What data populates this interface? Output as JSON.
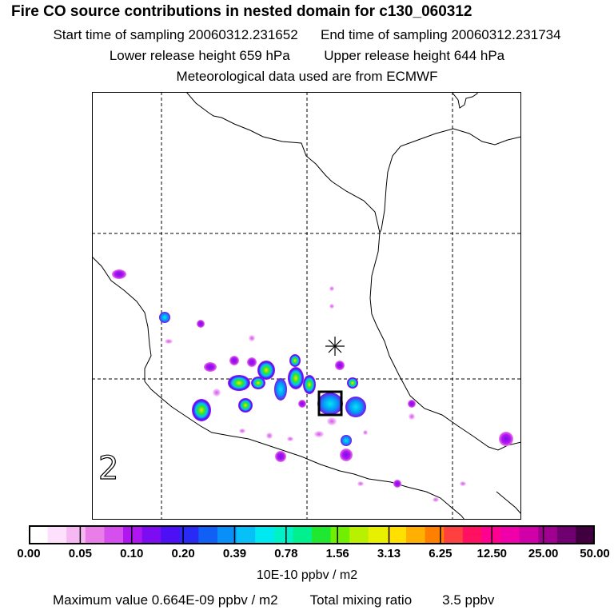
{
  "header": {
    "title": "Fire CO source contributions in nested domain for c130_060312",
    "start_label": "Start time of sampling 20060312.231652",
    "end_label": "End time of sampling 20060312.231734",
    "lower_label": "Lower release height  659 hPa",
    "upper_label": "Upper release height  644 hPa",
    "met_label": "Meteorological data used are from ECMWF"
  },
  "map": {
    "panel_label": "2",
    "marker": "asterisk-release-point",
    "box": "sampling-box"
  },
  "colorbar": {
    "tick_labels": [
      "0.00",
      "0.05",
      "0.10",
      "0.20",
      "0.39",
      "0.78",
      "1.56",
      "3.13",
      "6.25",
      "12.50",
      "25.00",
      "50.00"
    ],
    "units": "10E-10 ppbv / m2",
    "colors": [
      "#ffffff",
      "#fde0fb",
      "#f6b8f2",
      "#ea7ee8",
      "#d44fee",
      "#b016f0",
      "#7d0cf0",
      "#4d10f5",
      "#2a2af5",
      "#1060f5",
      "#0890f8",
      "#08c0f8",
      "#00e8f0",
      "#00f0c8",
      "#00f090",
      "#20e830",
      "#70f000",
      "#b8f000",
      "#e8f000",
      "#ffe000",
      "#ffb000",
      "#ff8000",
      "#ff4040",
      "#ff1060",
      "#ff0090",
      "#f000a8",
      "#d000a8",
      "#a00090",
      "#700070",
      "#400040"
    ]
  },
  "footer": {
    "max_label": "Maximum value  0.664E-09 ppbv / m2",
    "total_label": "Total mixing ratio",
    "total_value": "3.5 ppbv"
  }
}
